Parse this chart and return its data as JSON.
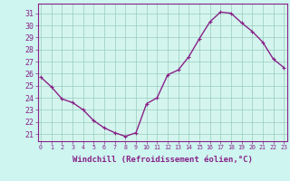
{
  "x": [
    0,
    1,
    2,
    3,
    4,
    5,
    6,
    7,
    8,
    9,
    10,
    11,
    12,
    13,
    14,
    15,
    16,
    17,
    18,
    19,
    20,
    21,
    22,
    23
  ],
  "y": [
    25.7,
    24.9,
    23.9,
    23.6,
    23.0,
    22.1,
    21.5,
    21.1,
    20.8,
    21.1,
    23.5,
    24.0,
    25.9,
    26.3,
    27.4,
    28.9,
    30.3,
    31.1,
    31.0,
    30.2,
    29.5,
    28.6,
    27.2,
    26.5
  ],
  "line_color": "#882288",
  "marker": "P",
  "markersize": 2.5,
  "linewidth": 1.0,
  "xlabel": "Windchill (Refroidissement éolien,°C)",
  "xlabel_fontsize": 6.5,
  "yticks": [
    21,
    22,
    23,
    24,
    25,
    26,
    27,
    28,
    29,
    30,
    31
  ],
  "xticks": [
    0,
    1,
    2,
    3,
    4,
    5,
    6,
    7,
    8,
    9,
    10,
    11,
    12,
    13,
    14,
    15,
    16,
    17,
    18,
    19,
    20,
    21,
    22,
    23
  ],
  "xlim": [
    -0.3,
    23.3
  ],
  "ylim": [
    20.4,
    31.8
  ],
  "bg_color": "#cef5f0",
  "plot_bg_color": "#d4f5ee",
  "grid_color": "#99ccbb",
  "tick_color": "#882288",
  "label_color": "#882288",
  "spine_color": "#882288",
  "ytick_fontsize": 6,
  "xtick_fontsize": 4.8
}
